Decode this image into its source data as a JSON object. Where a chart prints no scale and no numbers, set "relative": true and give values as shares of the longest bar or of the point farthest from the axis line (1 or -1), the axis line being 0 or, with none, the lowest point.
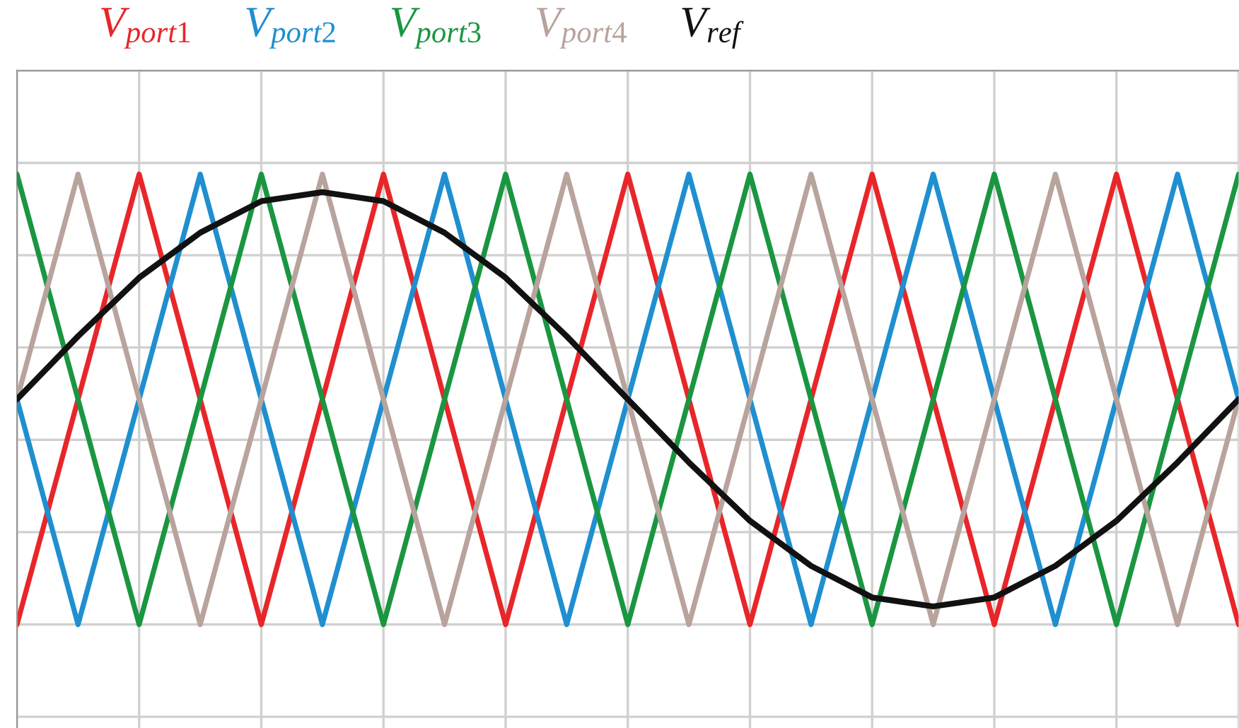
{
  "chart_data": {
    "type": "line",
    "relative": true,
    "grid": true,
    "legend": "top",
    "line_style": "solid",
    "categories": [
      null,
      null,
      null,
      null,
      null,
      null,
      null,
      null,
      null,
      null,
      null,
      null,
      null,
      null,
      null,
      null,
      null,
      null,
      null,
      null,
      null
    ],
    "series": [
      {
        "name": "V$_{port1}$",
        "color": "#e8262a",
        "values": [
          0,
          0.5,
          1,
          0.5,
          0,
          0.5,
          1,
          0.5,
          0,
          0.5,
          1,
          0.5,
          0,
          0.5,
          1,
          0.5,
          0,
          0.5,
          1,
          0.5,
          0
        ]
      },
      {
        "name": "V$_{port2}$",
        "color": "#1f8fd0",
        "values": [
          0.5,
          0,
          0.5,
          1,
          0.5,
          0,
          0.5,
          1,
          0.5,
          0,
          0.5,
          1,
          0.5,
          0,
          0.5,
          1,
          0.5,
          0,
          0.5,
          1,
          0.5
        ]
      },
      {
        "name": "V$_{port3}$",
        "color": "#1a9641",
        "values": [
          1,
          0.5,
          0,
          0.5,
          1,
          0.5,
          0,
          0.5,
          1,
          0.5,
          0,
          0.5,
          1,
          0.5,
          0,
          0.5,
          1,
          0.5,
          0,
          0.5,
          1
        ]
      },
      {
        "name": "V$_{port4}$",
        "color": "#b8a39d",
        "values": [
          0.5,
          1,
          0.5,
          0,
          0.5,
          1,
          0.5,
          0,
          0.5,
          1,
          0.5,
          0,
          0.5,
          1,
          0.5,
          0,
          0.5,
          1,
          0.5,
          0,
          0.5
        ]
      },
      {
        "name": "V$_{ref}$",
        "color": "#111111",
        "values": [
          0.5,
          0.64,
          0.77,
          0.87,
          0.94,
          0.96,
          0.94,
          0.87,
          0.77,
          0.64,
          0.5,
          0.36,
          0.23,
          0.13,
          0.06,
          0.04,
          0.06,
          0.13,
          0.23,
          0.36,
          0.5
        ]
      }
    ]
  }
}
